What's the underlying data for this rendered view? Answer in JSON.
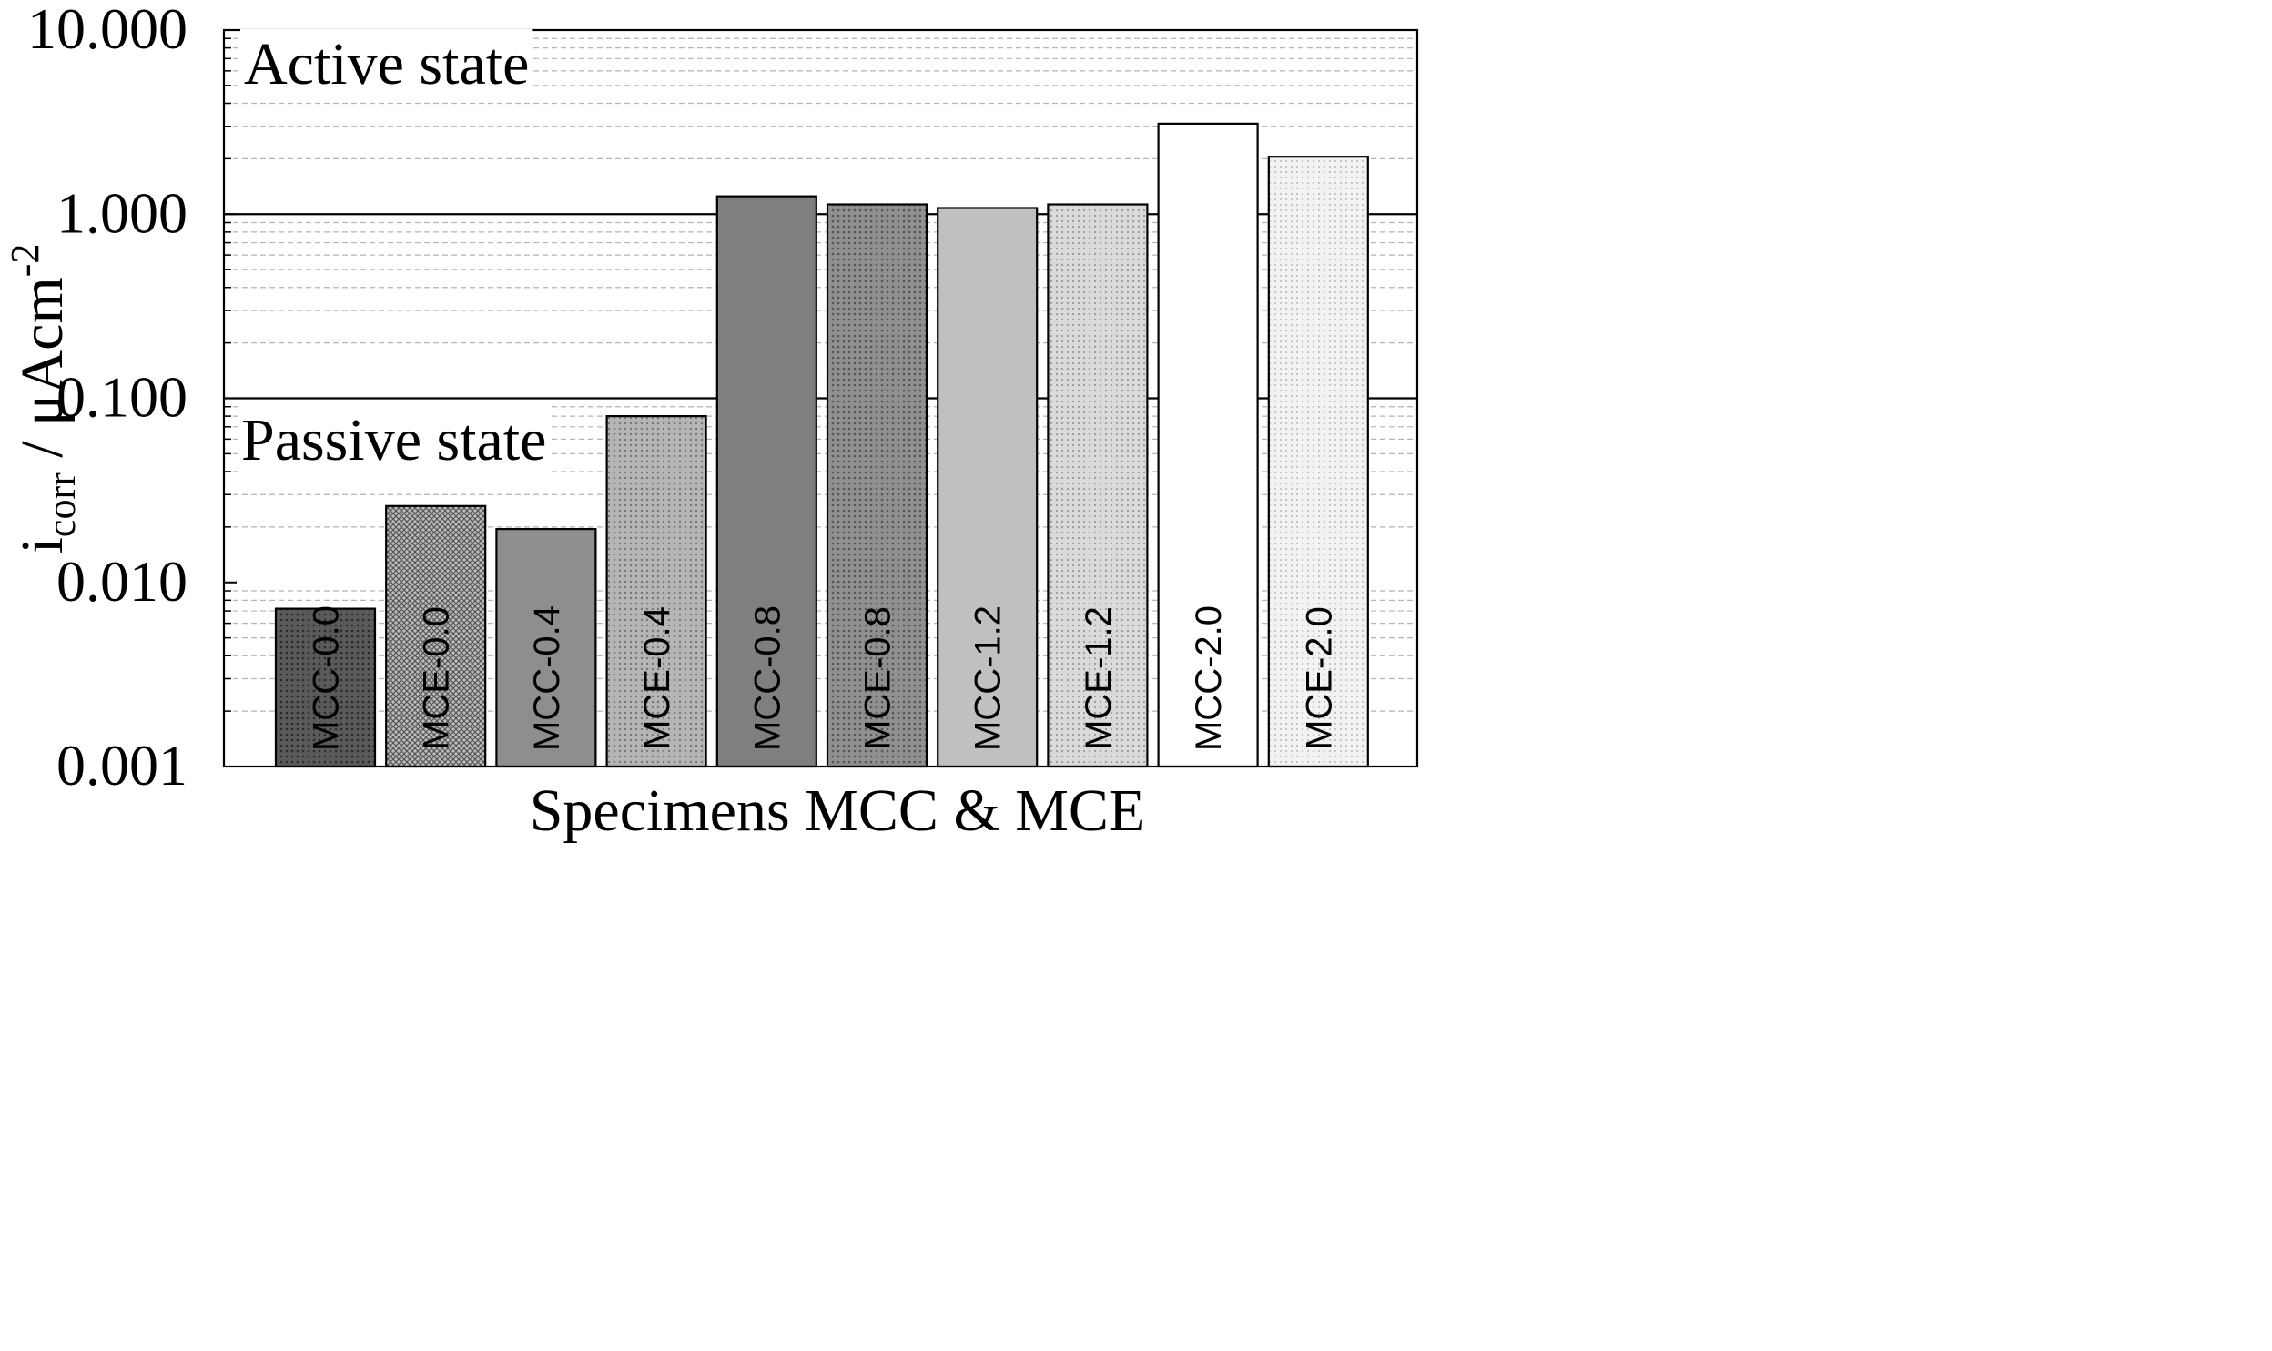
{
  "chart_data": {
    "type": "bar",
    "title": "",
    "xlabel": "Specimens MCC & MCE",
    "ylabel_main": "i",
    "ylabel_subscript": "corr",
    "ylabel_unit": " / μAcm",
    "ylabel_superscript": "-2",
    "yscale": "log",
    "ylim": [
      0.001,
      10
    ],
    "yticks": [
      0.001,
      0.01,
      0.1,
      1,
      10
    ],
    "ytick_labels": [
      "0.001",
      "0.010",
      "0.100",
      "1.000",
      "10.000"
    ],
    "grid": "dashed minor gridlines",
    "categories": [
      "MCC-0.0",
      "MCE-0.0",
      "MCC-0.4",
      "MCE-0.4",
      "MCC-0.8",
      "MCE-0.8",
      "MCC-1.2",
      "MCE-1.2",
      "MCC-2.0",
      "MCE-2.0"
    ],
    "values": [
      0.0072,
      0.026,
      0.0195,
      0.08,
      1.25,
      1.13,
      1.08,
      1.13,
      3.1,
      2.05
    ],
    "bar_colors": [
      "#4f4f4f",
      "#8f8f8f",
      "#8e8e8e",
      "#b0b0b0",
      "#7f7f7f",
      "#9a9a9a",
      "#c0c0c0",
      "#d3d3d3",
      "#ffffff",
      "#efefef"
    ],
    "bar_label_colors": [
      "#000000",
      "#000000",
      "#000000",
      "#000000",
      "#000000",
      "#000000",
      "#000000",
      "#000000",
      "#000000",
      "#000000"
    ],
    "thresholds": [
      {
        "value": 1.0,
        "label": "Active state"
      },
      {
        "value": 0.1,
        "label": "Passive state"
      }
    ]
  }
}
